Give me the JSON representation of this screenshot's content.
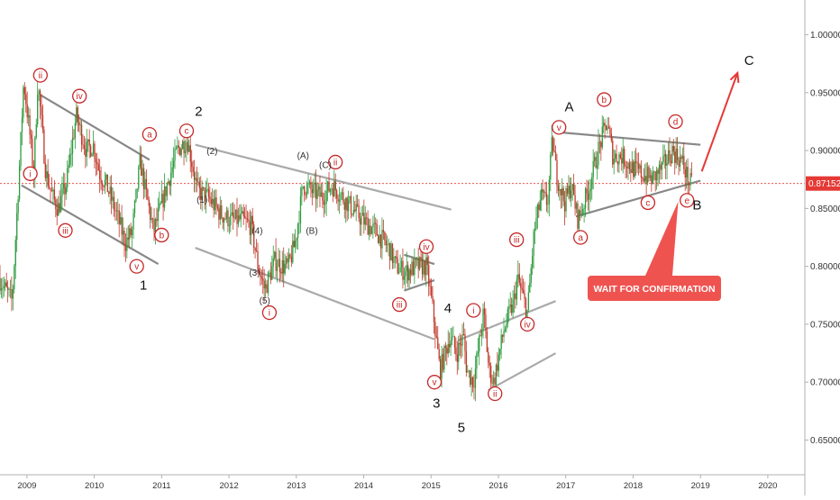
{
  "chart_data": {
    "type": "candlestick",
    "title": "",
    "xlabel": "",
    "ylabel": "",
    "x_ticks": [
      "2009",
      "2010",
      "2011",
      "2012",
      "2013",
      "2014",
      "2015",
      "2016",
      "2017",
      "2018",
      "2019",
      "2020"
    ],
    "y_ticks": [
      "0.65000",
      "0.70000",
      "0.75000",
      "0.80000",
      "0.85000",
      "0.90000",
      "0.95000",
      "1.00000"
    ],
    "ylim": [
      0.62,
      1.03
    ],
    "xlim": [
      2008.6,
      2020.55
    ],
    "last_price": {
      "value": 0.87152,
      "label": "0.87152",
      "color": "#e53935"
    },
    "price_path": [
      [
        2008.6,
        0.79
      ],
      [
        2008.8,
        0.77
      ],
      [
        2008.92,
        0.9
      ],
      [
        2008.97,
        0.96
      ],
      [
        2009.05,
        0.92
      ],
      [
        2009.12,
        0.88
      ],
      [
        2009.18,
        0.96
      ],
      [
        2009.3,
        0.88
      ],
      [
        2009.4,
        0.86
      ],
      [
        2009.48,
        0.85
      ],
      [
        2009.6,
        0.87
      ],
      [
        2009.75,
        0.93
      ],
      [
        2009.9,
        0.9
      ],
      [
        2010.0,
        0.905
      ],
      [
        2010.1,
        0.88
      ],
      [
        2010.2,
        0.87
      ],
      [
        2010.35,
        0.845
      ],
      [
        2010.48,
        0.82
      ],
      [
        2010.58,
        0.83
      ],
      [
        2010.7,
        0.89
      ],
      [
        2010.78,
        0.865
      ],
      [
        2010.9,
        0.83
      ],
      [
        2011.05,
        0.86
      ],
      [
        2011.25,
        0.9
      ],
      [
        2011.4,
        0.91
      ],
      [
        2011.55,
        0.865
      ],
      [
        2011.7,
        0.86
      ],
      [
        2011.9,
        0.845
      ],
      [
        2012.05,
        0.84
      ],
      [
        2012.2,
        0.84
      ],
      [
        2012.35,
        0.835
      ],
      [
        2012.45,
        0.8
      ],
      [
        2012.55,
        0.78
      ],
      [
        2012.7,
        0.805
      ],
      [
        2012.82,
        0.8
      ],
      [
        2012.9,
        0.8
      ],
      [
        2013.0,
        0.82
      ],
      [
        2013.12,
        0.87
      ],
      [
        2013.25,
        0.865
      ],
      [
        2013.4,
        0.86
      ],
      [
        2013.55,
        0.87
      ],
      [
        2013.7,
        0.86
      ],
      [
        2013.85,
        0.85
      ],
      [
        2014.0,
        0.84
      ],
      [
        2014.2,
        0.83
      ],
      [
        2014.4,
        0.815
      ],
      [
        2014.5,
        0.8
      ],
      [
        2014.65,
        0.795
      ],
      [
        2014.8,
        0.8
      ],
      [
        2014.95,
        0.8
      ],
      [
        2015.05,
        0.76
      ],
      [
        2015.15,
        0.71
      ],
      [
        2015.3,
        0.74
      ],
      [
        2015.4,
        0.725
      ],
      [
        2015.5,
        0.74
      ],
      [
        2015.55,
        0.71
      ],
      [
        2015.65,
        0.7
      ],
      [
        2015.8,
        0.76
      ],
      [
        2015.88,
        0.71
      ],
      [
        2015.95,
        0.7
      ],
      [
        2016.1,
        0.745
      ],
      [
        2016.25,
        0.77
      ],
      [
        2016.3,
        0.79
      ],
      [
        2016.4,
        0.77
      ],
      [
        2016.45,
        0.76
      ],
      [
        2016.55,
        0.83
      ],
      [
        2016.65,
        0.86
      ],
      [
        2016.75,
        0.855
      ],
      [
        2016.82,
        0.91
      ],
      [
        2016.88,
        0.88
      ],
      [
        2017.0,
        0.855
      ],
      [
        2017.1,
        0.87
      ],
      [
        2017.2,
        0.84
      ],
      [
        2017.35,
        0.865
      ],
      [
        2017.5,
        0.9
      ],
      [
        2017.63,
        0.925
      ],
      [
        2017.72,
        0.895
      ],
      [
        2017.85,
        0.895
      ],
      [
        2018.0,
        0.885
      ],
      [
        2018.15,
        0.88
      ],
      [
        2018.3,
        0.875
      ],
      [
        2018.45,
        0.885
      ],
      [
        2018.6,
        0.9
      ],
      [
        2018.75,
        0.89
      ],
      [
        2018.85,
        0.872
      ],
      [
        2018.88,
        0.8715
      ]
    ],
    "trendlines": [
      {
        "name": "ch1-upper",
        "color": "#888888",
        "p1": [
          2009.2,
          0.948
        ],
        "p2": [
          2010.82,
          0.892
        ]
      },
      {
        "name": "ch1-lower",
        "color": "#888888",
        "p1": [
          2008.92,
          0.87
        ],
        "p2": [
          2010.95,
          0.802
        ]
      },
      {
        "name": "ch2-upper",
        "color": "#aaaaaa",
        "p1": [
          2011.5,
          0.905
        ],
        "p2": [
          2015.3,
          0.849
        ]
      },
      {
        "name": "ch2-lower",
        "color": "#aaaaaa",
        "p1": [
          2011.5,
          0.816
        ],
        "p2": [
          2015.05,
          0.737
        ]
      },
      {
        "name": "tri4-upper",
        "color": "#888888",
        "p1": [
          2014.6,
          0.81
        ],
        "p2": [
          2015.05,
          0.802
        ]
      },
      {
        "name": "tri4-lower",
        "color": "#888888",
        "p1": [
          2014.6,
          0.779
        ],
        "p2": [
          2015.05,
          0.788
        ]
      },
      {
        "name": "ch5-upper",
        "color": "#aaaaaa",
        "p1": [
          2015.4,
          0.736
        ],
        "p2": [
          2016.85,
          0.77
        ]
      },
      {
        "name": "ch5-lower",
        "color": "#aaaaaa",
        "p1": [
          2015.85,
          0.693
        ],
        "p2": [
          2016.85,
          0.725
        ]
      },
      {
        "name": "tri-upper",
        "color": "#888888",
        "p1": [
          2016.85,
          0.916
        ],
        "p2": [
          2019.0,
          0.905
        ]
      },
      {
        "name": "tri-lower",
        "color": "#888888",
        "p1": [
          2017.15,
          0.843
        ],
        "p2": [
          2019.0,
          0.874
        ]
      }
    ],
    "projection": {
      "color": "#e53935",
      "p1": [
        2019.02,
        0.882
      ],
      "p2": [
        2019.55,
        0.967
      ],
      "label": "C",
      "label_pos": [
        2019.65,
        0.974
      ]
    },
    "red_wave_labels": [
      {
        "t": "ii",
        "x": 2009.2,
        "y": 0.965
      },
      {
        "t": "i",
        "x": 2009.05,
        "y": 0.88
      },
      {
        "t": "iv",
        "x": 2009.78,
        "y": 0.947
      },
      {
        "t": "iii",
        "x": 2009.57,
        "y": 0.831
      },
      {
        "t": "v",
        "x": 2010.63,
        "y": 0.8
      },
      {
        "t": "a",
        "x": 2010.82,
        "y": 0.914
      },
      {
        "t": "b",
        "x": 2011.0,
        "y": 0.827
      },
      {
        "t": "c",
        "x": 2011.37,
        "y": 0.917
      },
      {
        "t": "ii",
        "x": 2013.58,
        "y": 0.89
      },
      {
        "t": "i",
        "x": 2012.6,
        "y": 0.76
      },
      {
        "t": "iv",
        "x": 2014.93,
        "y": 0.817
      },
      {
        "t": "iii",
        "x": 2014.53,
        "y": 0.767
      },
      {
        "t": "v",
        "x": 2015.05,
        "y": 0.7
      },
      {
        "t": "i",
        "x": 2015.63,
        "y": 0.762
      },
      {
        "t": "ii",
        "x": 215.95,
        "y": 0.69
      },
      {
        "t": "iii",
        "x": 2016.27,
        "y": 0.823
      },
      {
        "t": "iv",
        "x": 2016.43,
        "y": 0.75
      },
      {
        "t": "v",
        "x": 2016.9,
        "y": 0.92
      },
      {
        "t": "a",
        "x": 2017.22,
        "y": 0.825
      },
      {
        "t": "b",
        "x": 2017.57,
        "y": 0.944
      },
      {
        "t": "c",
        "x": 2018.22,
        "y": 0.855
      },
      {
        "t": "d",
        "x": 2018.63,
        "y": 0.925
      },
      {
        "t": "e",
        "x": 2018.8,
        "y": 0.857
      }
    ],
    "small_wave_labels": [
      {
        "t": "(2)",
        "x": 2011.75,
        "y": 0.897
      },
      {
        "t": "(1)",
        "x": 2011.6,
        "y": 0.855
      },
      {
        "t": "(4)",
        "x": 2012.42,
        "y": 0.828
      },
      {
        "t": "(3)",
        "x": 2012.38,
        "y": 0.792
      },
      {
        "t": "(5)",
        "x": 2012.53,
        "y": 0.768
      },
      {
        "t": "(A)",
        "x": 2013.1,
        "y": 0.893
      },
      {
        "t": "(B)",
        "x": 2013.23,
        "y": 0.828
      },
      {
        "t": "(C)",
        "x": 2013.43,
        "y": 0.885
      }
    ],
    "big_wave_labels": [
      {
        "t": "1",
        "x": 2010.73,
        "y": 0.78
      },
      {
        "t": "2",
        "x": 2011.55,
        "y": 0.93
      },
      {
        "t": "3",
        "x": 2015.08,
        "y": 0.678
      },
      {
        "t": "4",
        "x": 2015.25,
        "y": 0.76
      },
      {
        "t": "5",
        "x": 2015.45,
        "y": 0.657
      },
      {
        "t": "A",
        "x": 2017.05,
        "y": 0.934
      },
      {
        "t": "B",
        "x": 2018.95,
        "y": 0.849
      }
    ],
    "annotation": {
      "text": "WAIT FOR CONFIRMATION",
      "bg": "#ef5350",
      "fg": "#ffffff",
      "anchor": [
        2018.67,
        0.856
      ]
    },
    "colors": {
      "up": "#2e9b3f",
      "down": "#c0392b",
      "wave": "#c62828",
      "axis": "#b0b0b0"
    }
  }
}
